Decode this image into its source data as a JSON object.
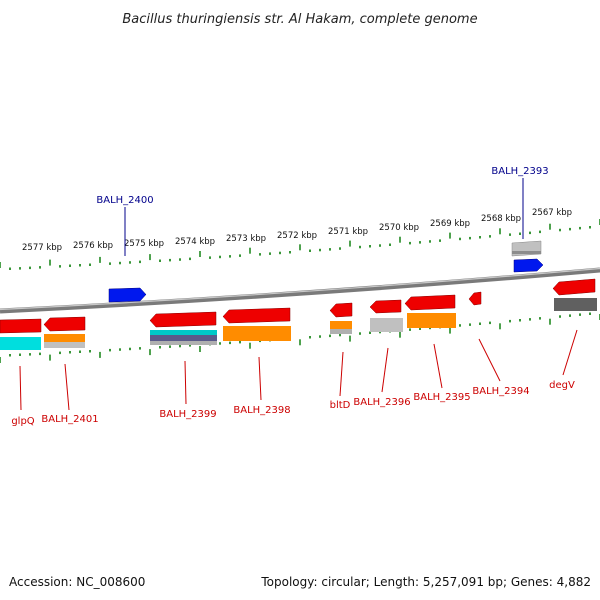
{
  "title": "Bacillus thuringiensis str. Al Hakam, complete genome",
  "footer": {
    "accession": "Accession: NC_008600",
    "summary": "Topology: circular; Length: 5,257,091 bp; Genes: 4,882"
  },
  "colors": {
    "backbone": "#7a7a7a",
    "tick": "#228b22",
    "label_forward": "#00008b",
    "label_reverse": "#cc0000",
    "red": "#ee0000",
    "blue": "#0018ee",
    "orange": "#ff8c00",
    "cyan": "#00dede",
    "gray": "#c0c0c0",
    "darkgray": "#606060",
    "purple": "#5a5a8a"
  },
  "scale_labels": [
    "2577 kbp",
    "2576 kbp",
    "2575 kbp",
    "2574 kbp",
    "2573 kbp",
    "2572 kbp",
    "2571 kbp",
    "2570 kbp",
    "2569 kbp",
    "2568 kbp",
    "2567 kbp"
  ],
  "gene_labels": {
    "forward": [
      "BALH_2400",
      "BALH_2393"
    ],
    "reverse": [
      "glpQ",
      "BALH_2401",
      "BALH_2399",
      "BALH_2398",
      "bltD",
      "BALH_2396",
      "BALH_2395",
      "BALH_2394",
      "degV"
    ]
  }
}
